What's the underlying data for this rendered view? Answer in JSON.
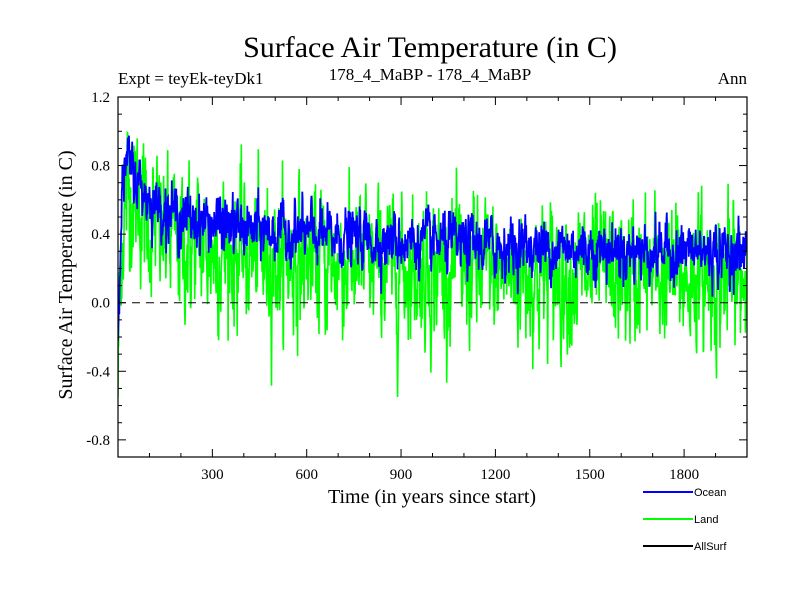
{
  "chart_data": {
    "type": "line",
    "title": "Surface Air Temperature (in C)",
    "subtitle_left": "Expt = teyEk-teyDk1",
    "subtitle_center": "178_4_MaBP - 178_4_MaBP",
    "subtitle_right": "Ann",
    "xlabel": "Time (in years since start)",
    "ylabel": "Surface Air Temperature (in C)",
    "xlim": [
      0,
      2000
    ],
    "ylim": [
      -0.9,
      1.2
    ],
    "xticks": [
      300,
      600,
      900,
      1200,
      1500,
      1800
    ],
    "xtick_labels": [
      "300",
      "600",
      "900",
      "1200",
      "1500",
      "1800"
    ],
    "yticks": [
      -0.8,
      -0.4,
      0.0,
      0.4,
      0.8,
      1.2
    ],
    "ytick_labels": [
      "-0.8",
      "-0.4",
      "0.0",
      "0.4",
      "0.8",
      "1.2"
    ],
    "reference_line": 0.0,
    "legend_position": "bottom-right",
    "series": [
      {
        "name": "Land",
        "color": "#00ff00",
        "trend": {
          "x": [
            0,
            5,
            15,
            30,
            60,
            100,
            200,
            400,
            600,
            800,
            1000,
            1200,
            1400,
            1600,
            1800,
            2000
          ],
          "mean": [
            -0.5,
            0.1,
            0.45,
            0.65,
            0.62,
            0.45,
            0.35,
            0.28,
            0.25,
            0.22,
            0.2,
            0.18,
            0.17,
            0.16,
            0.15,
            0.15
          ]
        },
        "noise_amplitude": 0.17
      },
      {
        "name": "Ocean",
        "color": "#0000ff",
        "trend": {
          "x": [
            0,
            5,
            15,
            30,
            60,
            100,
            200,
            400,
            600,
            800,
            1000,
            1200,
            1400,
            1600,
            1800,
            2000
          ],
          "mean": [
            -0.2,
            0.3,
            0.7,
            0.82,
            0.72,
            0.6,
            0.5,
            0.43,
            0.4,
            0.37,
            0.35,
            0.33,
            0.32,
            0.31,
            0.3,
            0.29
          ]
        },
        "noise_amplitude": 0.07
      },
      {
        "name": "AllSurf",
        "color": "#000000",
        "trend": {
          "x": [],
          "mean": []
        },
        "noise_amplitude": 0
      }
    ]
  }
}
